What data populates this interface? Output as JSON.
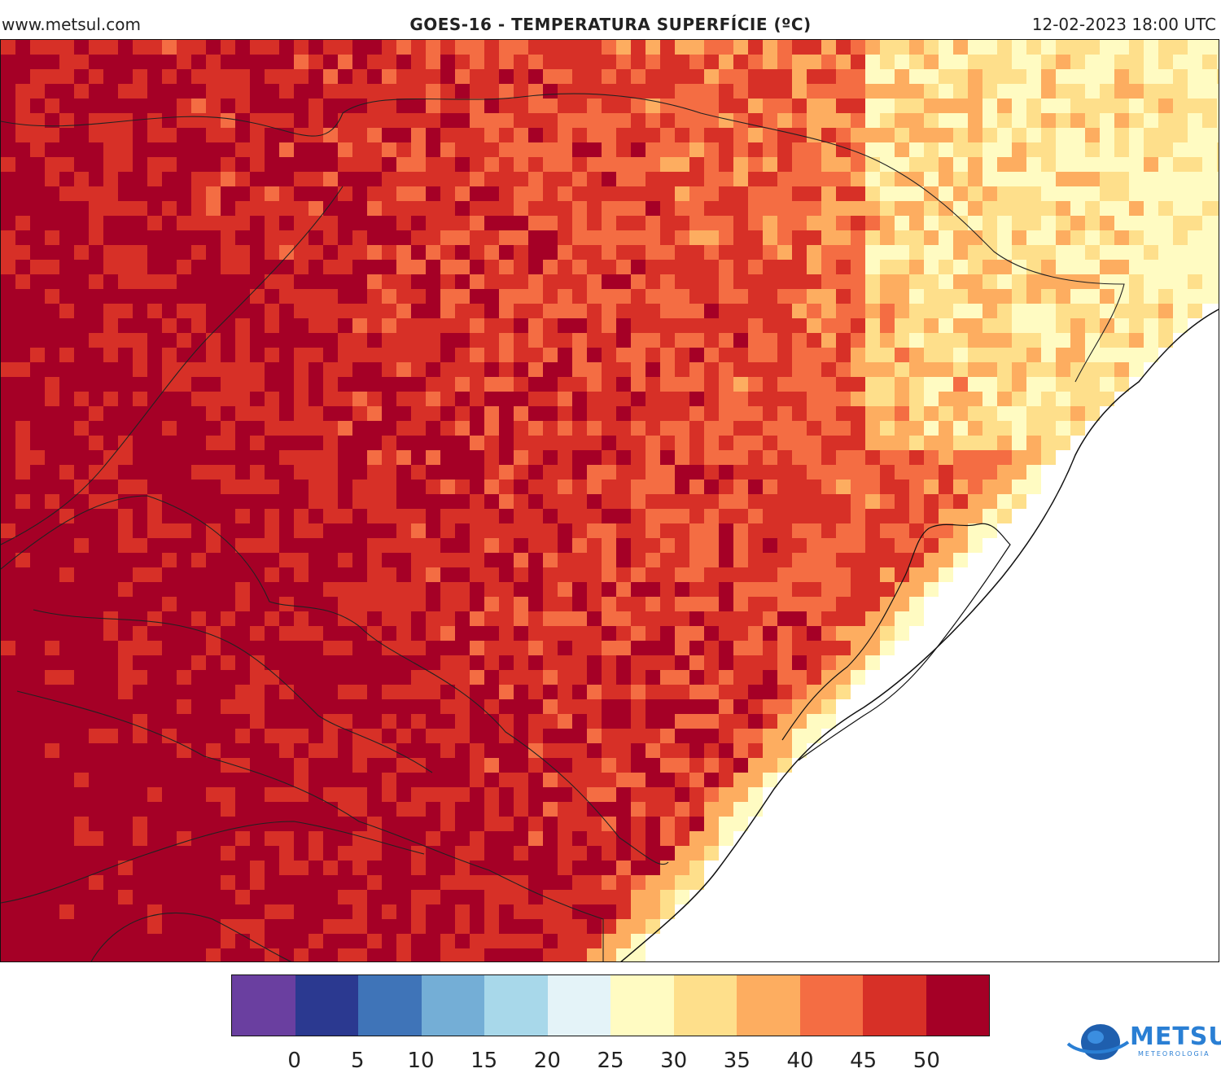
{
  "header": {
    "site": "www.metsul.com",
    "title": "GOES-16 - TEMPERATURA SUPERFÍCIE (ºC)",
    "timestamp": "12-02-2023 18:00 UTC"
  },
  "legend": {
    "colors": [
      "#6a3fa0",
      "#2b3990",
      "#3f74b8",
      "#74aed6",
      "#a8d8ea",
      "#e4f3f8",
      "#fffbc2",
      "#fedf8b",
      "#fdad60",
      "#f46d43",
      "#d73027",
      "#a50026"
    ],
    "ticks": [
      "0",
      "5",
      "10",
      "15",
      "20",
      "25",
      "30",
      "35",
      "40",
      "45",
      "50"
    ]
  },
  "logo": {
    "brand": "METSUL",
    "sub": "METEOROLOGIA"
  },
  "colors": {
    "ocean": "#ffffff",
    "border": "#111111"
  }
}
